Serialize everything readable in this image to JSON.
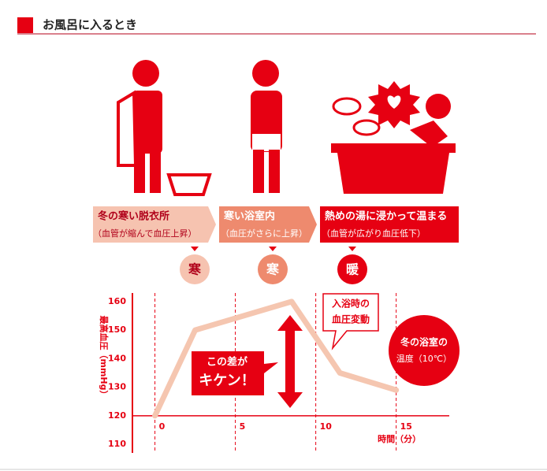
{
  "header": {
    "title": "お風呂に入るとき"
  },
  "stages": [
    {
      "label": "冬の寒い脱衣所",
      "note": "（血管が縮んで血圧上昇）",
      "mark": "寒"
    },
    {
      "label": "寒い浴室内",
      "note": "（血圧がさらに上昇）",
      "mark": "寒"
    },
    {
      "label": "熱めの湯に浸かって温まる",
      "note": "（血管が広がり血圧低下）",
      "mark": "暖"
    }
  ],
  "chart_data": {
    "type": "line",
    "y_label": "最高血圧（mmHg）",
    "x_label": "時間（分）",
    "x": [
      0,
      2.5,
      8.5,
      11.5,
      15
    ],
    "values": [
      120,
      150,
      160,
      135,
      129
    ],
    "color": "#f5c6b0",
    "xlim": [
      -1.4,
      18.3
    ],
    "xticks": [
      0,
      5,
      10,
      15
    ],
    "ylim": [
      107,
      163
    ],
    "yticks": [
      110,
      120,
      130,
      140,
      150,
      160
    ],
    "annotations": [
      [
        "この差が",
        "キケン！"
      ],
      [
        "入浴時の",
        "血圧変動"
      ],
      [
        "冬の浴室の",
        "温度（10℃）"
      ]
    ]
  }
}
